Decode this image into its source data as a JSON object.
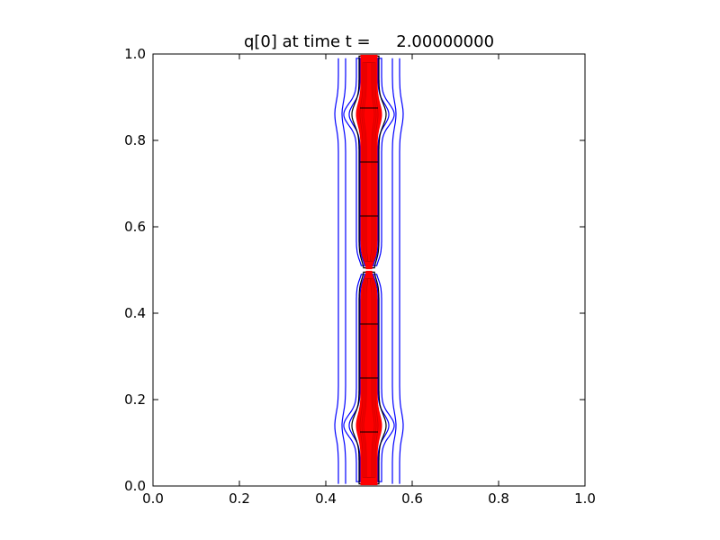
{
  "chart_data": {
    "type": "contour",
    "title": "q[0] at time t =     2.00000000",
    "xlabel": "",
    "ylabel": "",
    "xlim": [
      0.0,
      1.0
    ],
    "ylim": [
      0.0,
      1.0
    ],
    "x_ticks": [
      "0.0",
      "0.2",
      "0.4",
      "0.6",
      "0.8",
      "1.0"
    ],
    "y_ticks": [
      "0.0",
      "0.2",
      "0.4",
      "0.6",
      "0.8",
      "1.0"
    ],
    "grid": false,
    "legend": "none",
    "colors": {
      "outer_contours": "#0000ff",
      "inner_contours": "#ff0000",
      "mesh_lines": "#000000",
      "axes": "#000000",
      "background": "#ffffff"
    },
    "features": {
      "column_center_x": 0.5,
      "bulges_y": [
        0.14,
        0.86
      ],
      "neck_y": 0.5,
      "mesh_line_y": [
        0.125,
        0.25,
        0.375,
        0.625,
        0.75,
        0.875
      ]
    }
  }
}
